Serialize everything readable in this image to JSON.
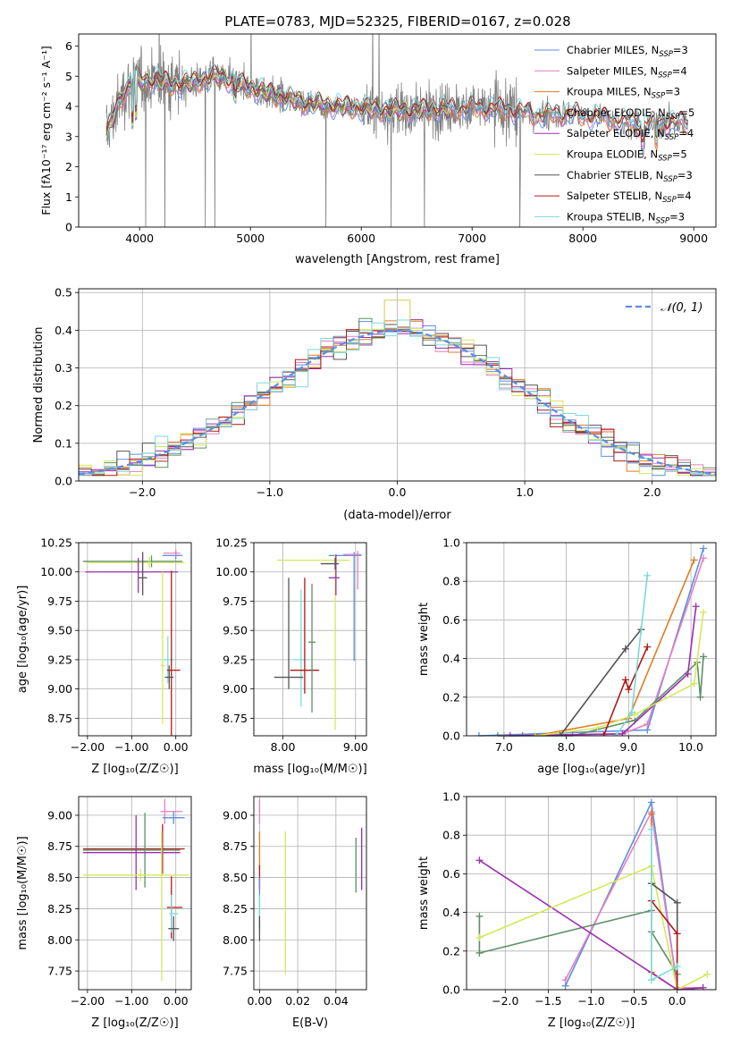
{
  "figure_title": "PLATE=0783, MJD=52325, FIBERID=0167, z=0.028",
  "colors": {
    "Chabrier MILES": "#5b8fe0",
    "Salpeter MILES": "#e67fc0",
    "Kroupa MILES": "#e07d24",
    "Chabrier ELODIE": "#5c8f66",
    "Salpeter ELODIE": "#9b2fae",
    "Kroupa ELODIE": "#d4e85a",
    "Chabrier STELIB": "#555555",
    "Salpeter STELIB": "#b01818",
    "Kroupa STELIB": "#7adada",
    "data": "#808080",
    "gauss": "#5b8fe0"
  },
  "chart_data": [
    {
      "id": "spectrum",
      "type": "line",
      "xlabel": "wavelength [Angstrom, rest frame]",
      "ylabel": "Flux [fλ10⁻¹⁷ erg cm⁻² s⁻¹ A⁻¹]",
      "xlim": [
        3450,
        9200
      ],
      "ylim": [
        0,
        6.4
      ],
      "xticks": [
        4000,
        5000,
        6000,
        7000,
        8000,
        9000
      ],
      "yticks": [
        0,
        1,
        2,
        3,
        4,
        5,
        6
      ],
      "grid": false,
      "legend_position": "top-right",
      "legend": [
        {
          "prefix": "Chabrier MILES, N",
          "sub": "SSP",
          "suffix": "=3"
        },
        {
          "prefix": "Salpeter MILES, N",
          "sub": "SSP",
          "suffix": "=4"
        },
        {
          "prefix": "Kroupa MILES, N",
          "sub": "SSP",
          "suffix": "=3"
        },
        {
          "prefix": "Chabrier ELODIE, N",
          "sub": "SSP",
          "suffix": "=5"
        },
        {
          "prefix": "Salpeter ELODIE, N",
          "sub": "SSP",
          "suffix": "=4"
        },
        {
          "prefix": "Kroupa ELODIE, N",
          "sub": "SSP",
          "suffix": "=5"
        },
        {
          "prefix": "Chabrier STELIB, N",
          "sub": "SSP",
          "suffix": "=3"
        },
        {
          "prefix": "Salpeter STELIB, N",
          "sub": "SSP",
          "suffix": "=4"
        },
        {
          "prefix": "Kroupa STELIB, N",
          "sub": "SSP",
          "suffix": "=3"
        }
      ],
      "continuum_knots": {
        "x": [
          3700,
          3850,
          3950,
          4050,
          4150,
          4300,
          4500,
          4700,
          4850,
          5000,
          5200,
          5500,
          5800,
          6100,
          6400,
          6700,
          7000,
          7300,
          7600,
          7900,
          8200,
          8500,
          8800
        ],
        "y": [
          3.1,
          4.4,
          4.9,
          4.8,
          4.9,
          4.7,
          4.8,
          5.0,
          4.8,
          4.6,
          4.4,
          4.1,
          4.0,
          3.9,
          3.85,
          3.9,
          3.95,
          3.9,
          3.7,
          3.75,
          3.6,
          3.4,
          3.45
        ]
      }
    },
    {
      "id": "residuals",
      "type": "histogram",
      "xlabel": "(data-model)/error",
      "ylabel": "Normed distribution",
      "xlim": [
        -2.5,
        2.5
      ],
      "ylim": [
        0,
        0.51
      ],
      "xticks": [
        -2,
        -1,
        0,
        1,
        2
      ],
      "yticks": [
        0.0,
        0.1,
        0.2,
        0.3,
        0.4,
        0.5
      ],
      "grid": true,
      "legend_position": "top-right",
      "legend_label": "𝒩(0, 1)",
      "bin_width": 0.1,
      "gaussian": {
        "mu": 0,
        "sigma": 1
      }
    },
    {
      "id": "age_vs_Z",
      "type": "scatter",
      "xlabel": "Z [log₁₀(Z/Z☉)]",
      "ylabel": "age  [log₁₀(age/yr)]",
      "xlim": [
        -2.2,
        0.35
      ],
      "ylim": [
        8.6,
        10.25
      ],
      "xticks": [
        -2,
        -1,
        0
      ],
      "yticks": [
        8.75,
        9.0,
        9.25,
        9.5,
        9.75,
        10.0,
        10.25
      ],
      "grid": true,
      "points": [
        {
          "model": "Chabrier ELODIE",
          "x": -0.55,
          "y": 10.09,
          "xe": [
            1.55,
            0.7
          ],
          "ye": [
            0.05,
            0.05
          ]
        },
        {
          "model": "Kroupa ELODIE",
          "x": -0.6,
          "y": 10.08,
          "xe": [
            1.4,
            0.8
          ],
          "ye": [
            0.05,
            0.05
          ]
        },
        {
          "model": "Salpeter ELODIE",
          "x": -0.85,
          "y": 10.0,
          "xe": [
            1.2,
            0.9
          ],
          "ye": [
            0.18,
            0.12
          ]
        },
        {
          "model": "Chabrier STELIB",
          "x": -0.75,
          "y": 9.95,
          "xe": [
            0.1,
            0.1
          ],
          "ye": [
            0.15,
            0.22
          ]
        },
        {
          "model": "Chabrier MILES",
          "x": 0.0,
          "y": 10.14,
          "xe": [
            0.3,
            0.15
          ],
          "ye": [
            0.03,
            0.03
          ]
        },
        {
          "model": "Salpeter MILES",
          "x": 0.0,
          "y": 10.16,
          "xe": [
            0.28,
            0.1
          ],
          "ye": [
            0.03,
            0.03
          ]
        },
        {
          "model": "Kroupa STELIB",
          "x": -0.18,
          "y": 9.25,
          "xe": [
            0.1,
            0.15
          ],
          "ye": [
            0.2,
            0.2
          ]
        },
        {
          "model": "Salpeter STELIB",
          "x": -0.1,
          "y": 9.16,
          "xe": [
            0.1,
            0.2
          ],
          "ye": [
            0.9,
            0.85
          ]
        },
        {
          "model": "Chabrier STELIB",
          "x": -0.15,
          "y": 9.1,
          "xe": [
            0.1,
            0.1
          ],
          "ye": [
            0.1,
            0.1
          ]
        },
        {
          "model": "Kroupa ELODIE",
          "x": -0.3,
          "y": 9.2,
          "xe": [
            0.05,
            0.05
          ],
          "ye": [
            0.5,
            0.8
          ]
        }
      ]
    },
    {
      "id": "age_vs_mass",
      "type": "scatter",
      "xlabel": "mass [log₁₀(M/M☉)]",
      "ylabel": "",
      "xlim": [
        7.6,
        9.15
      ],
      "ylim": [
        8.6,
        10.25
      ],
      "xticks": [
        8,
        9
      ],
      "yticks": [
        8.75,
        9.0,
        9.25,
        9.5,
        9.75,
        10.0,
        10.25
      ],
      "grid": true,
      "points": [
        {
          "model": "Chabrier MILES",
          "x": 8.98,
          "y": 10.14,
          "xe": [
            0.35,
            0.1
          ],
          "ye": [
            0.9,
            0.03
          ]
        },
        {
          "model": "Salpeter MILES",
          "x": 9.03,
          "y": 10.15,
          "xe": [
            0.2,
            0.05
          ],
          "ye": [
            0.3,
            0.03
          ]
        },
        {
          "model": "Kroupa ELODIE",
          "x": 8.72,
          "y": 10.1,
          "xe": [
            0.8,
            0.2
          ],
          "ye": [
            1.45,
            0.05
          ]
        },
        {
          "model": "Salpeter ELODIE",
          "x": 8.73,
          "y": 9.95,
          "xe": [
            0.1,
            0.05
          ],
          "ye": [
            0.15,
            0.2
          ]
        },
        {
          "model": "Chabrier STELIB",
          "x": 8.72,
          "y": 10.07,
          "xe": [
            0.2,
            0.05
          ],
          "ye": [
            0.05,
            0.05
          ]
        },
        {
          "model": "Kroupa STELIB",
          "x": 8.25,
          "y": 9.25,
          "xe": [
            0.1,
            0.1
          ],
          "ye": [
            0.4,
            0.6
          ]
        },
        {
          "model": "Salpeter STELIB",
          "x": 8.3,
          "y": 9.16,
          "xe": [
            0.2,
            0.2
          ],
          "ye": [
            0.2,
            0.79
          ]
        },
        {
          "model": "Chabrier STELIB",
          "x": 8.08,
          "y": 9.1,
          "xe": [
            0.2,
            0.2
          ],
          "ye": [
            0.1,
            0.85
          ]
        },
        {
          "model": "Chabrier ELODIE",
          "x": 8.4,
          "y": 9.4,
          "xe": [
            0.05,
            0.05
          ],
          "ye": [
            0.6,
            0.5
          ]
        }
      ]
    },
    {
      "id": "weight_vs_age",
      "type": "line",
      "xlabel": "age  [log₁₀(age/yr)]",
      "ylabel": "mass weight",
      "xlim": [
        6.4,
        10.4
      ],
      "ylim": [
        0,
        1.0
      ],
      "xticks": [
        7,
        8,
        9,
        10
      ],
      "yticks": [
        0.0,
        0.2,
        0.4,
        0.6,
        0.8,
        1.0
      ],
      "grid": true,
      "series": [
        {
          "model": "Chabrier MILES",
          "x": [
            6.6,
            9.3,
            10.2
          ],
          "y": [
            0.0,
            0.03,
            0.97
          ]
        },
        {
          "model": "Salpeter MILES",
          "x": [
            7.0,
            8.9,
            9.3,
            10.2
          ],
          "y": [
            0.0,
            0.01,
            0.06,
            0.92
          ]
        },
        {
          "model": "Kroupa MILES",
          "x": [
            7.5,
            9.0,
            10.05
          ],
          "y": [
            0.0,
            0.09,
            0.91
          ]
        },
        {
          "model": "Chabrier ELODIE",
          "x": [
            6.9,
            7.3,
            8.1,
            9.1,
            10.1,
            10.15,
            10.2
          ],
          "y": [
            0.0,
            0.0,
            0.0,
            0.08,
            0.38,
            0.2,
            0.41
          ]
        },
        {
          "model": "Salpeter ELODIE",
          "x": [
            7.1,
            8.9,
            9.95,
            10.08
          ],
          "y": [
            0.0,
            0.01,
            0.32,
            0.67
          ]
        },
        {
          "model": "Kroupa ELODIE",
          "x": [
            7.5,
            8.5,
            9.1,
            10.05,
            10.2
          ],
          "y": [
            0.0,
            0.04,
            0.11,
            0.27,
            0.64
          ]
        },
        {
          "model": "Chabrier STELIB",
          "x": [
            7.9,
            8.95,
            9.2
          ],
          "y": [
            0.0,
            0.45,
            0.55
          ]
        },
        {
          "model": "Salpeter STELIB",
          "x": [
            8.6,
            8.95,
            9.0,
            9.3
          ],
          "y": [
            0.0,
            0.29,
            0.24,
            0.46
          ]
        },
        {
          "model": "Kroupa STELIB",
          "x": [
            8.8,
            9.05,
            9.3
          ],
          "y": [
            0.0,
            0.12,
            0.83
          ]
        }
      ]
    },
    {
      "id": "mass_vs_Z",
      "type": "scatter",
      "xlabel": "Z [log₁₀(Z/Z☉)]",
      "ylabel": "mass [log₁₀(M/M☉)]",
      "xlim": [
        -2.2,
        0.35
      ],
      "ylim": [
        7.6,
        9.15
      ],
      "xticks": [
        -2,
        -1,
        0
      ],
      "yticks": [
        7.75,
        8.0,
        8.25,
        8.5,
        8.75,
        9.0
      ],
      "grid": true,
      "points": [
        {
          "model": "Salpeter MILES",
          "x": -0.25,
          "y": 9.03,
          "xe": [
            0.1,
            0.4
          ],
          "ye": [
            0.1,
            0.1
          ]
        },
        {
          "model": "Chabrier MILES",
          "x": -0.05,
          "y": 8.98,
          "xe": [
            0.25,
            0.25
          ],
          "ye": [
            0.05,
            0.05
          ]
        },
        {
          "model": "Salpeter STELIB",
          "x": -0.3,
          "y": 8.73,
          "xe": [
            1.8,
            0.5
          ],
          "ye": [
            0.2,
            0.2
          ]
        },
        {
          "model": "Chabrier ELODIE",
          "x": -0.7,
          "y": 8.72,
          "xe": [
            1.4,
            0.8
          ],
          "ye": [
            0.3,
            0.3
          ]
        },
        {
          "model": "Salpeter ELODIE",
          "x": -0.9,
          "y": 8.7,
          "xe": [
            1.2,
            1.0
          ],
          "ye": [
            0.3,
            0.3
          ]
        },
        {
          "model": "Kroupa ELODIE",
          "x": -0.8,
          "y": 8.52,
          "xe": [
            1.3,
            1.1
          ],
          "ye": [
            0.05,
            0.05
          ]
        },
        {
          "model": "Kroupa ELODIE",
          "x": -0.32,
          "y": 8.52,
          "xe": [
            0.05,
            0.05
          ],
          "ye": [
            0.85,
            0.35
          ]
        },
        {
          "model": "Salpeter STELIB",
          "x": -0.1,
          "y": 8.26,
          "xe": [
            0.1,
            0.25
          ],
          "ye": [
            0.25,
            0.25
          ]
        },
        {
          "model": "Kroupa STELIB",
          "x": -0.1,
          "y": 8.21,
          "xe": [
            0.05,
            0.15
          ],
          "ye": [
            0.15,
            0.15
          ]
        },
        {
          "model": "Chabrier STELIB",
          "x": -0.05,
          "y": 8.09,
          "xe": [
            0.12,
            0.12
          ],
          "ye": [
            0.1,
            0.1
          ]
        }
      ]
    },
    {
      "id": "mass_vs_EBV",
      "type": "scatter",
      "xlabel": "E(B-V)",
      "ylabel": "",
      "xlim": [
        -0.003,
        0.056
      ],
      "ylim": [
        7.6,
        9.15
      ],
      "xticks": [
        0.0,
        0.02,
        0.04
      ],
      "yticks": [
        7.75,
        8.0,
        8.25,
        8.5,
        8.75,
        9.0
      ],
      "grid": true,
      "points": [
        {
          "model": "Salpeter MILES",
          "x": 0.0,
          "y": 9.03,
          "xe": [
            0,
            0
          ],
          "ye": [
            0.1,
            0.1
          ]
        },
        {
          "model": "Kroupa MILES",
          "x": 0.0,
          "y": 8.72,
          "xe": [
            0,
            0
          ],
          "ye": [
            0.15,
            0.15
          ]
        },
        {
          "model": "Salpeter STELIB",
          "x": 0.0,
          "y": 8.5,
          "xe": [
            0,
            0
          ],
          "ye": [
            0.1,
            0.1
          ]
        },
        {
          "model": "Chabrier MILES",
          "x": 0.0,
          "y": 8.3,
          "xe": [
            0,
            0
          ],
          "ye": [
            0.2,
            0.2
          ]
        },
        {
          "model": "Kroupa STELIB",
          "x": 0.0,
          "y": 8.21,
          "xe": [
            0,
            0
          ],
          "ye": [
            0.15,
            0.15
          ]
        },
        {
          "model": "Chabrier STELIB",
          "x": 0.0,
          "y": 8.09,
          "xe": [
            0,
            0
          ],
          "ye": [
            0.1,
            0.1
          ]
        },
        {
          "model": "Kroupa ELODIE",
          "x": 0.0135,
          "y": 8.3,
          "xe": [
            0,
            0
          ],
          "ye": [
            0.58,
            0.57
          ]
        },
        {
          "model": "Chabrier ELODIE",
          "x": 0.0505,
          "y": 8.6,
          "xe": [
            0,
            0
          ],
          "ye": [
            0.22,
            0.22
          ]
        },
        {
          "model": "Salpeter ELODIE",
          "x": 0.0535,
          "y": 8.65,
          "xe": [
            0,
            0
          ],
          "ye": [
            0.25,
            0.25
          ]
        }
      ]
    },
    {
      "id": "weight_vs_Z",
      "type": "line",
      "xlabel": "Z [log₁₀(Z/Z☉)]",
      "ylabel": "mass weight",
      "xlim": [
        -2.45,
        0.45
      ],
      "ylim": [
        0,
        1.0
      ],
      "xticks": [
        -2.0,
        -1.5,
        -1.0,
        -0.5,
        0.0
      ],
      "yticks": [
        0.0,
        0.2,
        0.4,
        0.6,
        0.8,
        1.0
      ],
      "grid": true,
      "series": [
        {
          "model": "Chabrier MILES",
          "x": [
            -1.3,
            -0.3,
            0.0
          ],
          "y": [
            0.02,
            0.97,
            0.01
          ]
        },
        {
          "model": "Salpeter MILES",
          "x": [
            -1.3,
            -0.3,
            0.0,
            0.3
          ],
          "y": [
            0.05,
            0.92,
            0.01,
            0.01
          ]
        },
        {
          "model": "Kroupa MILES",
          "x": [
            -0.3,
            -0.3,
            0.0
          ],
          "y": [
            0.91,
            0.09,
            0.0
          ]
        },
        {
          "model": "Chabrier ELODIE",
          "x": [
            -2.3,
            -2.3,
            -0.3,
            -0.3,
            0.0
          ],
          "y": [
            0.38,
            0.19,
            0.41,
            0.3,
            0.08
          ]
        },
        {
          "model": "Salpeter ELODIE",
          "x": [
            -2.3,
            0.0,
            0.3
          ],
          "y": [
            0.67,
            0.0,
            0.01
          ]
        },
        {
          "model": "Kroupa ELODIE",
          "x": [
            -2.3,
            -0.3,
            0.0,
            0.35
          ],
          "y": [
            0.27,
            0.64,
            0.0,
            0.08
          ]
        },
        {
          "model": "Chabrier STELIB",
          "x": [
            -0.3,
            0.0,
            0.0
          ],
          "y": [
            0.55,
            0.45,
            0.0
          ]
        },
        {
          "model": "Salpeter STELIB",
          "x": [
            -0.3,
            0.0,
            0.0
          ],
          "y": [
            0.46,
            0.29,
            0.0
          ]
        },
        {
          "model": "Kroupa STELIB",
          "x": [
            -0.3,
            -0.3,
            0.0
          ],
          "y": [
            0.83,
            0.05,
            0.12
          ]
        }
      ]
    }
  ]
}
